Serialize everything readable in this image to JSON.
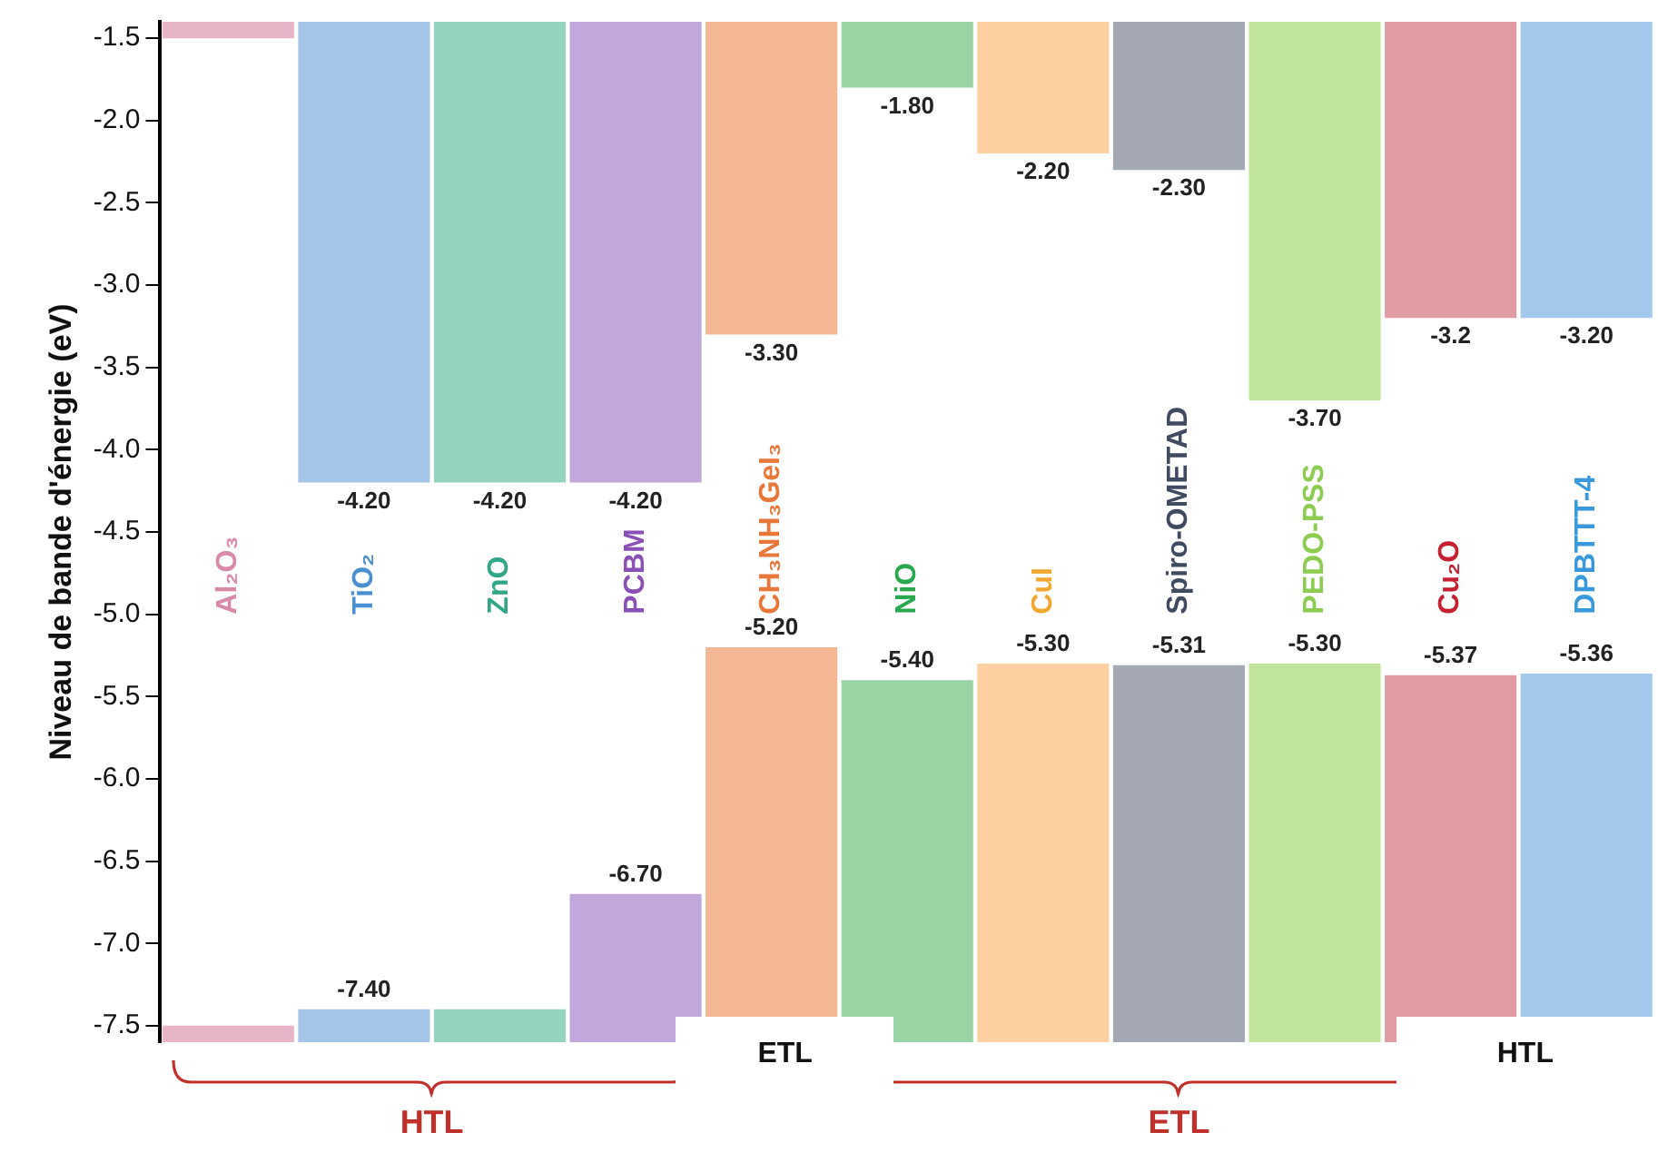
{
  "chart_data": {
    "type": "bar",
    "ylabel": "Niveau de bande d'énergie (eV)",
    "categories": [
      "Al₂O₃",
      "TiO₂",
      "ZnO",
      "PCBM",
      "CH₃NH₃GeI₃",
      "NiO",
      "CuI",
      "Spiro-OMETAD",
      "PEDO-PSS",
      "Cu₂O",
      "DPBTTT-4"
    ],
    "colors": [
      "#d98aa8",
      "#4a90d0",
      "#30a888",
      "#8a50b8",
      "#e8783a",
      "#2aa850",
      "#f0a830",
      "#404a60",
      "#8ccc50",
      "#c42030",
      "#3a98dc"
    ],
    "series": [
      {
        "type": "bar",
        "colors": [
          "#e8b4c8",
          "#a4c4e8",
          "#94d4bc",
          "#c0a8dc",
          "#f4b894",
          "#98d4a4",
          "#fcd0a0",
          "#a4a8b4",
          "#c0e49c",
          "#e09ca0",
          "#a4c8ec"
        ],
        "base": [
          -1.4,
          -1.4,
          -1.4,
          -1.4,
          -1.4,
          -1.4,
          -1.4,
          -1.4,
          -1.4,
          -1.4,
          -1.4
        ],
        "values": [
          -0.1,
          -2.8,
          -2.8,
          -2.8,
          -1.9,
          -0.4,
          -0.8,
          -0.9,
          -2.3,
          -1.8,
          -1.8
        ],
        "value_labels": [
          null,
          "-4.20",
          "-4.20",
          "-4.20",
          "-3.30",
          "-1.80",
          "-2.20",
          "-2.30",
          "-3.70",
          "-3.2",
          "-3.20"
        ]
      },
      {
        "type": "bar",
        "colors": [
          "#e8b4c8",
          "#a4c4e8",
          "#94d4bc",
          "#c0a8dc",
          "#f4b894",
          "#98d4a4",
          "#fcd0a0",
          "#a4a8b4",
          "#c0e49c",
          "#e09ca0",
          "#a4c8ec"
        ],
        "base": [
          -7.6,
          -7.6,
          -7.6,
          -7.6,
          -7.6,
          -7.6,
          -7.6,
          -7.6,
          -7.6,
          -7.6,
          -7.6
        ],
        "values": [
          0.1,
          0.2,
          0.2,
          0.9,
          2.4,
          2.2,
          2.3,
          2.29,
          2.3,
          2.23,
          2.24
        ],
        "value_labels": [
          null,
          "-7.40",
          null,
          "-6.70",
          "-5.20",
          "-5.40",
          "-5.30",
          "-5.31",
          "-5.30",
          "-5.37",
          "-5.36"
        ]
      }
    ],
    "ylim": [
      -7.6,
      -1.4
    ],
    "yticks": [
      -1.5,
      {
        "value": -2,
        "label": "-2.0"
      },
      -2.5,
      {
        "value": -3,
        "label": "-3.0"
      },
      -3.5,
      {
        "value": -4,
        "label": "-4.0"
      },
      -4.5,
      {
        "value": -5,
        "label": "-5.0"
      },
      -5.5,
      {
        "value": -6,
        "label": "-6.0"
      },
      -6.5,
      {
        "value": -7,
        "label": "-7.0"
      },
      -7.5
    ],
    "tick_labels": "y",
    "grid": false,
    "legend": false,
    "annotations": [
      "HTL",
      "ETL",
      "ETL",
      "HTL"
    ]
  }
}
